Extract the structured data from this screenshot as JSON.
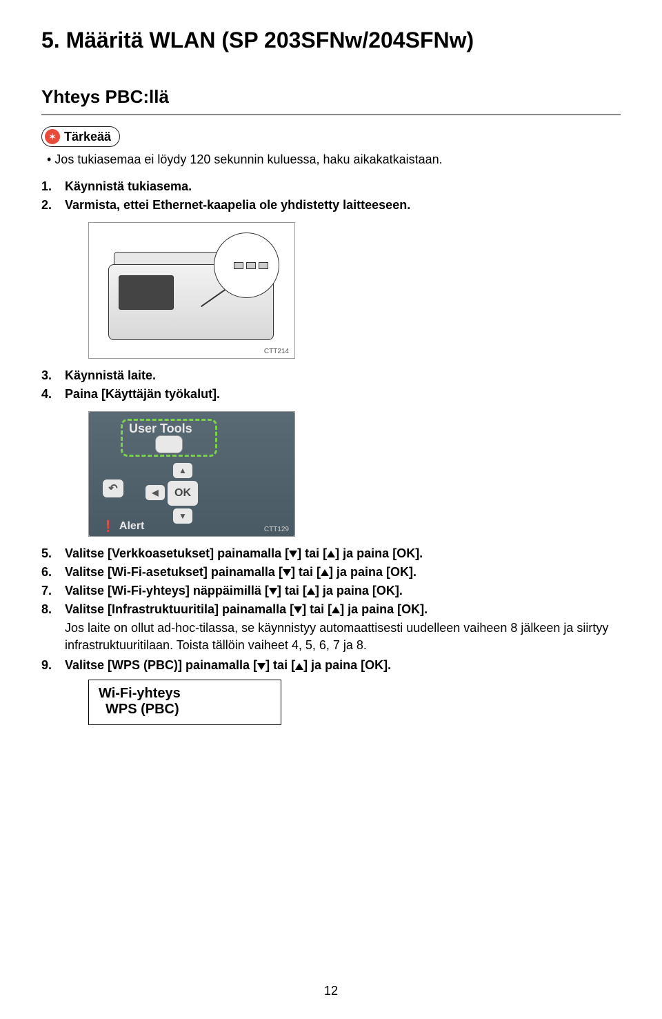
{
  "heading": "5. Määritä WLAN (SP 203SFNw/204SFNw)",
  "subheading": "Yhteys PBC:llä",
  "important_label": "Tärkeää",
  "note_bullet": "• Jos tukiasemaa ei löydy 120 sekunnin kuluessa, haku aikakatkaistaan.",
  "steps": {
    "s1": "Käynnistä tukiasema.",
    "s2": "Varmista, ettei Ethernet-kaapelia ole yhdistetty laitteeseen.",
    "s3": "Käynnistä laite.",
    "s4": "Paina [Käyttäjän työkalut].",
    "s5": "Valitse [Verkkoasetukset] painamalla [",
    "s5b": "] tai [",
    "s5c": "] ja paina [OK].",
    "s6": "Valitse [Wi-Fi-asetukset] painamalla [",
    "s6b": "] tai [",
    "s6c": "] ja paina [OK].",
    "s7": "Valitse [Wi-Fi-yhteys] näppäimillä [",
    "s7b": "] tai [",
    "s7c": "] ja paina [OK].",
    "s8": "Valitse [Infrastruktuuritila] painamalla [",
    "s8b": "] tai [",
    "s8c": "] ja paina [OK].",
    "s8_sub": "Jos laite on ollut ad-hoc-tilassa, se käynnistyy automaattisesti uudelleen vaiheen 8 jälkeen ja siirtyy infrastruktuuritilaan. Toista tällöin vaiheet 4, 5, 6, 7 ja 8.",
    "s9": "Valitse [WPS (PBC)] painamalla [",
    "s9b": "] tai [",
    "s9c": "] ja paina [OK]."
  },
  "fig1_caption": "CTT214",
  "fig2": {
    "user_tools": "User Tools",
    "ok": "OK",
    "alert": "Alert",
    "caption": "CTT129"
  },
  "lcd": {
    "line1": "Wi-Fi-yhteys",
    "line2": "WPS  (PBC)"
  },
  "page_number": "12"
}
